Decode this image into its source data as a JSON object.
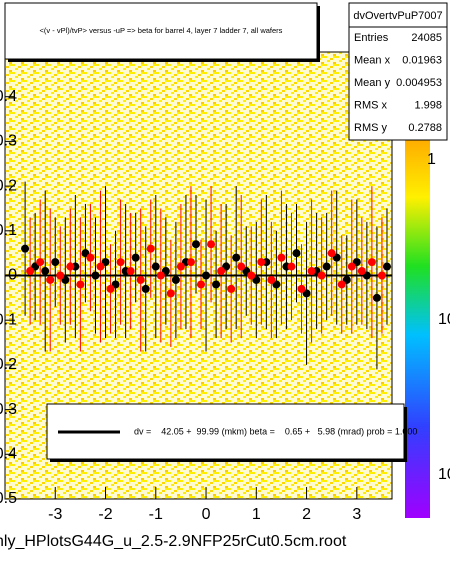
{
  "chart_data": {
    "type": "scatter",
    "title": "<(v - vPl)/tvP> versus -uP => beta for barrel 4, layer 7 ladder 7, all wafers",
    "xlim": [
      -4,
      3.7
    ],
    "ylim": [
      -0.5,
      0.5
    ],
    "xticks": [
      -3,
      -2,
      -1,
      0,
      1,
      2,
      3
    ],
    "yticks": [
      -0.5,
      -0.4,
      -0.3,
      -0.2,
      -0.1,
      0,
      0.1,
      0.2,
      0.3,
      0.4
    ],
    "series": [
      {
        "name": "black",
        "color": "#000000",
        "x": [
          -3.6,
          -3.4,
          -3.2,
          -3.0,
          -2.8,
          -2.6,
          -2.4,
          -2.2,
          -2.0,
          -1.8,
          -1.6,
          -1.4,
          -1.2,
          -1.0,
          -0.8,
          -0.6,
          -0.4,
          -0.2,
          0.0,
          0.2,
          0.4,
          0.6,
          0.8,
          1.0,
          1.2,
          1.4,
          1.6,
          1.8,
          2.0,
          2.2,
          2.4,
          2.6,
          2.8,
          3.0,
          3.2,
          3.4,
          3.6
        ],
        "values": [
          0.06,
          0.02,
          0.01,
          0.03,
          -0.01,
          0.02,
          0.05,
          0.0,
          0.03,
          -0.02,
          0.01,
          0.04,
          -0.03,
          0.02,
          0.01,
          -0.01,
          0.03,
          0.07,
          0.0,
          -0.02,
          0.02,
          0.04,
          0.01,
          -0.01,
          0.03,
          -0.02,
          0.02,
          0.05,
          -0.04,
          0.01,
          0.02,
          0.04,
          -0.01,
          0.03,
          0.0,
          -0.05,
          0.02
        ],
        "errors": [
          0.15,
          0.12,
          0.18,
          0.1,
          0.14,
          0.16,
          0.11,
          0.13,
          0.17,
          0.12,
          0.15,
          0.1,
          0.14,
          0.16,
          0.12,
          0.13,
          0.15,
          0.11,
          0.17,
          0.12,
          0.14,
          0.16,
          0.1,
          0.13,
          0.15,
          0.12,
          0.14,
          0.11,
          0.16,
          0.13,
          0.12,
          0.15,
          0.1,
          0.14,
          0.12,
          0.16,
          0.13
        ]
      },
      {
        "name": "red",
        "color": "#ff0000",
        "x": [
          -3.5,
          -3.3,
          -3.1,
          -2.9,
          -2.7,
          -2.5,
          -2.3,
          -2.1,
          -1.9,
          -1.7,
          -1.5,
          -1.3,
          -1.1,
          -0.9,
          -0.7,
          -0.5,
          -0.3,
          -0.1,
          0.1,
          0.3,
          0.5,
          0.7,
          0.9,
          1.1,
          1.3,
          1.5,
          1.7,
          1.9,
          2.1,
          2.3,
          2.5,
          2.7,
          2.9,
          3.1,
          3.3,
          3.5
        ],
        "values": [
          0.01,
          0.03,
          -0.01,
          0.0,
          0.02,
          -0.02,
          0.04,
          0.02,
          -0.03,
          0.03,
          0.01,
          -0.01,
          0.06,
          0.0,
          -0.04,
          0.02,
          0.03,
          -0.02,
          0.07,
          0.01,
          -0.03,
          0.02,
          0.0,
          0.03,
          -0.01,
          0.04,
          0.02,
          -0.03,
          0.01,
          0.0,
          0.05,
          -0.02,
          0.02,
          0.01,
          0.03,
          0.0
        ],
        "errors": [
          0.12,
          0.14,
          0.16,
          0.11,
          0.13,
          0.15,
          0.12,
          0.17,
          0.1,
          0.14,
          0.13,
          0.16,
          0.11,
          0.15,
          0.12,
          0.14,
          0.17,
          0.1,
          0.13,
          0.15,
          0.12,
          0.16,
          0.11,
          0.14,
          0.13,
          0.15,
          0.12,
          0.1,
          0.16,
          0.13,
          0.14,
          0.11,
          0.15,
          0.12,
          0.17,
          0.13
        ]
      }
    ],
    "legend_text": "dv =    42.05 +  99.99 (mkm) beta =    0.65 +   5.98 (mrad) prob = 1.000",
    "stats": {
      "name": "dvOvertvPuP7007",
      "rows": [
        [
          "Entries",
          24085
        ],
        [
          "Mean x",
          0.01963
        ],
        [
          "Mean y",
          0.004953
        ],
        [
          "RMS x",
          1.998
        ],
        [
          "RMS y",
          0.2788
        ]
      ]
    },
    "zticks": [
      "1",
      "10",
      "10"
    ],
    "footer": "nly_HPlotsG44G_u_2.5-2.9NFP25rCut0.5cm.root"
  }
}
